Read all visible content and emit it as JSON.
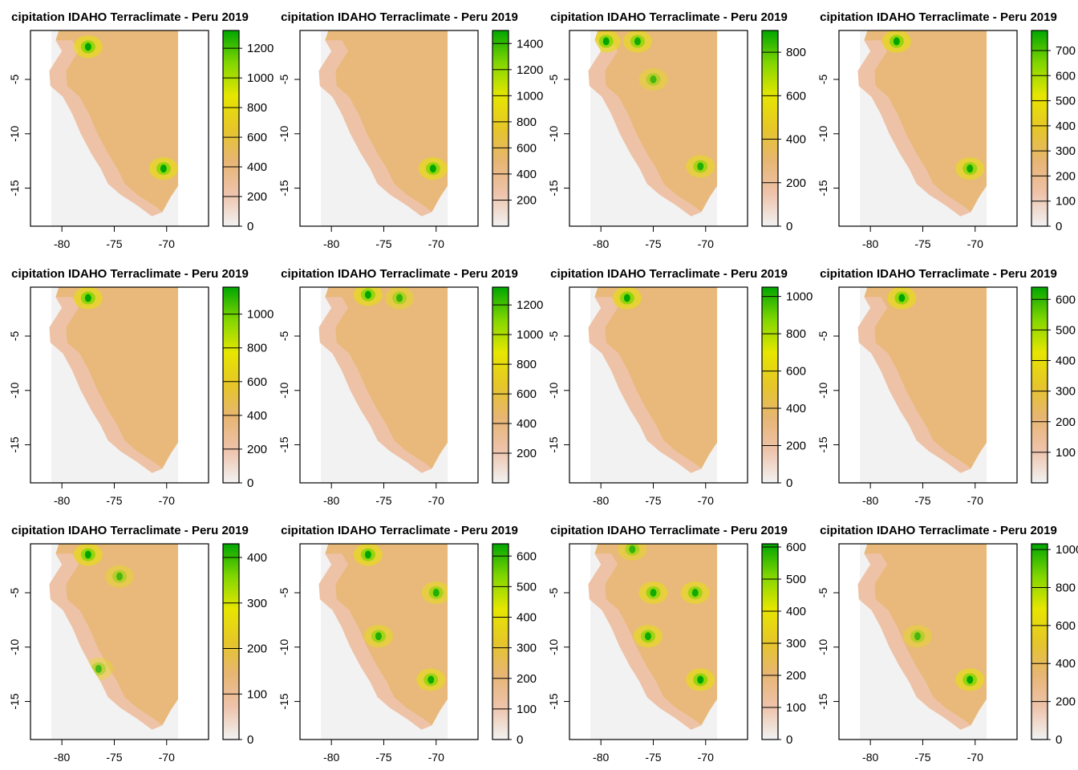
{
  "colors": {
    "ramp": [
      "#f2f2f2",
      "#eec3ab",
      "#e7b573",
      "#e6c628",
      "#e6e600",
      "#82d600",
      "#00a600"
    ],
    "background": "#ffffff",
    "frame": "#000000"
  },
  "chart_data": [
    {
      "type": "heatmap",
      "title": "cipitation IDAHO Terraclimate - Peru 2019",
      "x_ticks": [
        "-80",
        "-75",
        "-70"
      ],
      "y_ticks": [
        "-5",
        "-10",
        "-15"
      ],
      "xlim": [
        -83,
        -66
      ],
      "ylim": [
        -18.5,
        -0.5
      ],
      "legend": {
        "min": 0,
        "max": 1320,
        "ticks": [
          "0",
          "200",
          "400",
          "600",
          "800",
          "1000",
          "1200"
        ],
        "tick_values": [
          0,
          200,
          400,
          600,
          800,
          1000,
          1200
        ]
      },
      "hotspots": [
        {
          "lon": -77.5,
          "lat": -2,
          "level": 1.0
        },
        {
          "lon": -70.3,
          "lat": -13.2,
          "level": 1.0
        }
      ]
    },
    {
      "type": "heatmap",
      "title": "cipitation IDAHO Terraclimate - Peru 2019",
      "x_ticks": [
        "-80",
        "-75",
        "-70"
      ],
      "y_ticks": [
        "-5",
        "-10",
        "-15"
      ],
      "xlim": [
        -83,
        -66
      ],
      "ylim": [
        -18.5,
        -0.5
      ],
      "legend": {
        "min": 0,
        "max": 1500,
        "ticks": [
          "200",
          "400",
          "600",
          "800",
          "1000",
          "1200",
          "1400"
        ],
        "tick_values": [
          200,
          400,
          600,
          800,
          1000,
          1200,
          1400
        ]
      },
      "hotspots": [
        {
          "lon": -70.3,
          "lat": -13.2,
          "level": 1.0
        }
      ]
    },
    {
      "type": "heatmap",
      "title": "cipitation IDAHO Terraclimate - Peru 2019",
      "x_ticks": [
        "-80",
        "-75",
        "-70"
      ],
      "y_ticks": [
        "-5",
        "-10",
        "-15"
      ],
      "xlim": [
        -83,
        -66
      ],
      "ylim": [
        -18.5,
        -0.5
      ],
      "legend": {
        "min": 0,
        "max": 900,
        "ticks": [
          "0",
          "200",
          "400",
          "600",
          "800"
        ],
        "tick_values": [
          0,
          200,
          400,
          600,
          800
        ]
      },
      "hotspots": [
        {
          "lon": -79.5,
          "lat": -1.5,
          "level": 1.0
        },
        {
          "lon": -76.5,
          "lat": -1.5,
          "level": 0.9
        },
        {
          "lon": -70.5,
          "lat": -13,
          "level": 0.8
        },
        {
          "lon": -75,
          "lat": -5,
          "level": 0.6
        }
      ]
    },
    {
      "type": "heatmap",
      "title": "cipitation IDAHO Terraclimate - Peru 2019",
      "x_ticks": [
        "-80",
        "-75",
        "-70"
      ],
      "y_ticks": [
        "-5",
        "-10",
        "-15"
      ],
      "xlim": [
        -83,
        -66
      ],
      "ylim": [
        -18.5,
        -0.5
      ],
      "legend": {
        "min": 0,
        "max": 780,
        "ticks": [
          "0",
          "100",
          "200",
          "300",
          "400",
          "500",
          "600",
          "700"
        ],
        "tick_values": [
          0,
          100,
          200,
          300,
          400,
          500,
          600,
          700
        ]
      },
      "hotspots": [
        {
          "lon": -77.5,
          "lat": -1.5,
          "level": 1.0
        },
        {
          "lon": -70.5,
          "lat": -13.2,
          "level": 0.9
        }
      ]
    },
    {
      "type": "heatmap",
      "title": "cipitation IDAHO Terraclimate - Peru 2019",
      "x_ticks": [
        "-80",
        "-75",
        "-70"
      ],
      "y_ticks": [
        "-5",
        "-10",
        "-15"
      ],
      "xlim": [
        -83,
        -66
      ],
      "ylim": [
        -18.5,
        -0.5
      ],
      "legend": {
        "min": 0,
        "max": 1160,
        "ticks": [
          "0",
          "200",
          "400",
          "600",
          "800",
          "1000"
        ],
        "tick_values": [
          0,
          200,
          400,
          600,
          800,
          1000
        ]
      },
      "hotspots": [
        {
          "lon": -77.5,
          "lat": -1.5,
          "level": 1.0
        }
      ]
    },
    {
      "type": "heatmap",
      "title": "cipitation IDAHO Terraclimate - Peru 2019",
      "x_ticks": [
        "-80",
        "-75",
        "-70"
      ],
      "y_ticks": [
        "-5",
        "-10",
        "-15"
      ],
      "xlim": [
        -83,
        -66
      ],
      "ylim": [
        -18.5,
        -0.5
      ],
      "legend": {
        "min": 0,
        "max": 1320,
        "ticks": [
          "200",
          "400",
          "600",
          "800",
          "1000",
          "1200"
        ],
        "tick_values": [
          200,
          400,
          600,
          800,
          1000,
          1200
        ]
      },
      "hotspots": [
        {
          "lon": -76.5,
          "lat": -1.2,
          "level": 1.0
        },
        {
          "lon": -73.5,
          "lat": -1.5,
          "level": 0.7
        }
      ]
    },
    {
      "type": "heatmap",
      "title": "cipitation IDAHO Terraclimate - Peru 2019",
      "x_ticks": [
        "-80",
        "-75",
        "-70"
      ],
      "y_ticks": [
        "-5",
        "-10",
        "-15"
      ],
      "xlim": [
        -83,
        -66
      ],
      "ylim": [
        -18.5,
        -0.5
      ],
      "legend": {
        "min": 0,
        "max": 1050,
        "ticks": [
          "0",
          "200",
          "400",
          "600",
          "800",
          "1000"
        ],
        "tick_values": [
          0,
          200,
          400,
          600,
          800,
          1000
        ]
      },
      "hotspots": [
        {
          "lon": -77.5,
          "lat": -1.5,
          "level": 1.0
        }
      ]
    },
    {
      "type": "heatmap",
      "title": "cipitation IDAHO Terraclimate - Peru 2019",
      "x_ticks": [
        "-80",
        "-75",
        "-70"
      ],
      "y_ticks": [
        "-5",
        "-10",
        "-15"
      ],
      "xlim": [
        -83,
        -66
      ],
      "ylim": [
        -18.5,
        -0.5
      ],
      "legend": {
        "min": 0,
        "max": 640,
        "ticks": [
          "100",
          "200",
          "300",
          "400",
          "500",
          "600"
        ],
        "tick_values": [
          100,
          200,
          300,
          400,
          500,
          600
        ]
      },
      "hotspots": [
        {
          "lon": -77,
          "lat": -1.5,
          "level": 1.0
        }
      ]
    },
    {
      "type": "heatmap",
      "title": "cipitation IDAHO Terraclimate - Peru 2019",
      "x_ticks": [
        "-80",
        "-75",
        "-70"
      ],
      "y_ticks": [
        "-5",
        "-10",
        "-15"
      ],
      "xlim": [
        -83,
        -66
      ],
      "ylim": [
        -18.5,
        -0.5
      ],
      "legend": {
        "min": 0,
        "max": 430,
        "ticks": [
          "0",
          "100",
          "200",
          "300",
          "400"
        ],
        "tick_values": [
          0,
          100,
          200,
          300,
          400
        ]
      },
      "hotspots": [
        {
          "lon": -77.5,
          "lat": -1.5,
          "level": 1.0
        },
        {
          "lon": -74.5,
          "lat": -3.5,
          "level": 0.6
        },
        {
          "lon": -76.5,
          "lat": -12,
          "level": 0.6
        }
      ]
    },
    {
      "type": "heatmap",
      "title": "cipitation IDAHO Terraclimate - Peru 2019",
      "x_ticks": [
        "-80",
        "-75",
        "-70"
      ],
      "y_ticks": [
        "-5",
        "-10",
        "-15"
      ],
      "xlim": [
        -83,
        -66
      ],
      "ylim": [
        -18.5,
        -0.5
      ],
      "legend": {
        "min": 0,
        "max": 640,
        "ticks": [
          "0",
          "100",
          "200",
          "300",
          "400",
          "500",
          "600"
        ],
        "tick_values": [
          0,
          100,
          200,
          300,
          400,
          500,
          600
        ]
      },
      "hotspots": [
        {
          "lon": -76.5,
          "lat": -1.5,
          "level": 1.0
        },
        {
          "lon": -70,
          "lat": -5,
          "level": 0.8
        },
        {
          "lon": -75.5,
          "lat": -9,
          "level": 0.8
        },
        {
          "lon": -70.5,
          "lat": -13,
          "level": 0.9
        }
      ]
    },
    {
      "type": "heatmap",
      "title": "cipitation IDAHO Terraclimate - Peru 2019",
      "x_ticks": [
        "-80",
        "-75",
        "-70"
      ],
      "y_ticks": [
        "-5",
        "-10",
        "-15"
      ],
      "xlim": [
        -83,
        -66
      ],
      "ylim": [
        -18.5,
        -0.5
      ],
      "legend": {
        "min": 0,
        "max": 610,
        "ticks": [
          "0",
          "100",
          "200",
          "300",
          "400",
          "500",
          "600"
        ],
        "tick_values": [
          0,
          100,
          200,
          300,
          400,
          500,
          600
        ]
      },
      "hotspots": [
        {
          "lon": -75,
          "lat": -5,
          "level": 0.9
        },
        {
          "lon": -71,
          "lat": -5,
          "level": 0.9
        },
        {
          "lon": -75.5,
          "lat": -9,
          "level": 0.9
        },
        {
          "lon": -70.5,
          "lat": -13,
          "level": 1.0
        },
        {
          "lon": -77,
          "lat": -1,
          "level": 0.7
        }
      ]
    },
    {
      "type": "heatmap",
      "title": "cipitation IDAHO Terraclimate - Peru 2019",
      "x_ticks": [
        "-80",
        "-75",
        "-70"
      ],
      "y_ticks": [
        "-5",
        "-10",
        "-15"
      ],
      "xlim": [
        -83,
        -66
      ],
      "ylim": [
        -18.5,
        -0.5
      ],
      "legend": {
        "min": 0,
        "max": 1030,
        "ticks": [
          "0",
          "200",
          "400",
          "600",
          "800",
          "1000"
        ],
        "tick_values": [
          0,
          200,
          400,
          600,
          800,
          1000
        ]
      },
      "hotspots": [
        {
          "lon": -70.5,
          "lat": -13,
          "level": 1.0
        },
        {
          "lon": -75.5,
          "lat": -9,
          "level": 0.6
        }
      ]
    }
  ]
}
